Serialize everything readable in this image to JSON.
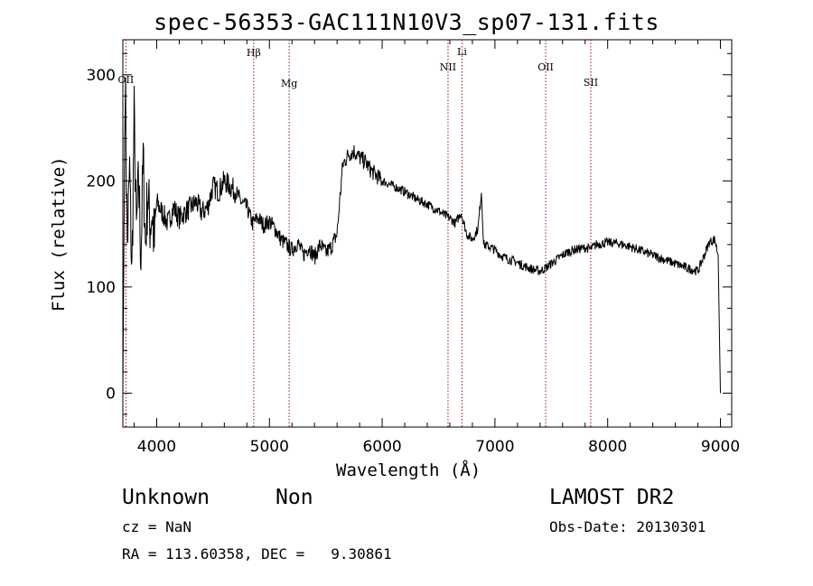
{
  "header": {
    "title": "spec-56353-GAC111N10V3_sp07-131.fits"
  },
  "info": {
    "object_class": "Unknown",
    "subclass": "Non",
    "survey": "LAMOST DR2",
    "cz": "cz = NaN",
    "obs_date": "Obs-Date: 20130301",
    "ra_dec": "RA = 113.60358, DEC =   9.30861"
  },
  "chart_data": {
    "type": "line",
    "title": "spec-56353-GAC111N10V3_sp07-131.fits",
    "xlabel": "Wavelength (Å)",
    "ylabel": "Flux (relative)",
    "xlim": [
      3700,
      9100
    ],
    "ylim": [
      -32,
      333
    ],
    "xticks": [
      4000,
      5000,
      6000,
      7000,
      8000,
      9000
    ],
    "yticks": [
      0,
      100,
      200,
      300
    ],
    "grid": false,
    "color": "#000000",
    "line_marker_color": "#8b1a1a",
    "spectral_lines": [
      {
        "label": "OII",
        "x": 3727
      },
      {
        "label": "Hβ",
        "x": 4861
      },
      {
        "label": "Mg",
        "x": 5175
      },
      {
        "label": "NII",
        "x": 6584
      },
      {
        "label": "Li",
        "x": 6708
      },
      {
        "label": "OII",
        "x": 7450
      },
      {
        "label": "SII",
        "x": 7850
      }
    ],
    "series": [
      {
        "x": [
          3700,
          3720,
          3740,
          3760,
          3780,
          3800,
          3820,
          3840,
          3860,
          3880,
          3900,
          3920,
          3940,
          3960,
          3980,
          4000,
          4050,
          4100,
          4150,
          4200,
          4250,
          4300,
          4350,
          4400,
          4450,
          4500,
          4550,
          4600,
          4650,
          4700,
          4750,
          4800,
          4850,
          4900,
          4950,
          5000,
          5050,
          5100,
          5150,
          5200,
          5250,
          5300,
          5350,
          5400,
          5450,
          5500,
          5550,
          5600,
          5650,
          5700,
          5750,
          5800,
          5850,
          5900,
          5950,
          6000,
          6100,
          6200,
          6300,
          6400,
          6500,
          6550,
          6600,
          6650,
          6700,
          6750,
          6800,
          6850,
          6880,
          6900,
          6950,
          7000,
          7050,
          7100,
          7150,
          7200,
          7250,
          7300,
          7350,
          7400,
          7450,
          7500,
          7550,
          7600,
          7650,
          7700,
          7750,
          7800,
          7850,
          7900,
          7950,
          8000,
          8100,
          8200,
          8300,
          8400,
          8500,
          8600,
          8700,
          8800,
          8850,
          8900,
          8950,
          8980,
          9000
        ],
        "y": [
          0,
          300,
          140,
          210,
          110,
          260,
          150,
          200,
          130,
          220,
          140,
          190,
          160,
          170,
          140,
          180,
          170,
          160,
          175,
          165,
          170,
          175,
          180,
          170,
          175,
          195,
          190,
          200,
          195,
          190,
          180,
          175,
          160,
          165,
          158,
          162,
          155,
          145,
          140,
          135,
          142,
          130,
          138,
          128,
          140,
          132,
          138,
          150,
          215,
          225,
          228,
          222,
          218,
          210,
          205,
          200,
          195,
          190,
          183,
          178,
          172,
          168,
          165,
          160,
          170,
          150,
          145,
          155,
          190,
          140,
          138,
          135,
          130,
          127,
          125,
          123,
          120,
          118,
          116,
          115,
          118,
          122,
          126,
          130,
          133,
          135,
          136,
          137,
          136,
          140,
          141,
          142,
          141,
          138,
          134,
          130,
          126,
          122,
          118,
          115,
          128,
          142,
          145,
          130,
          0
        ]
      }
    ]
  }
}
